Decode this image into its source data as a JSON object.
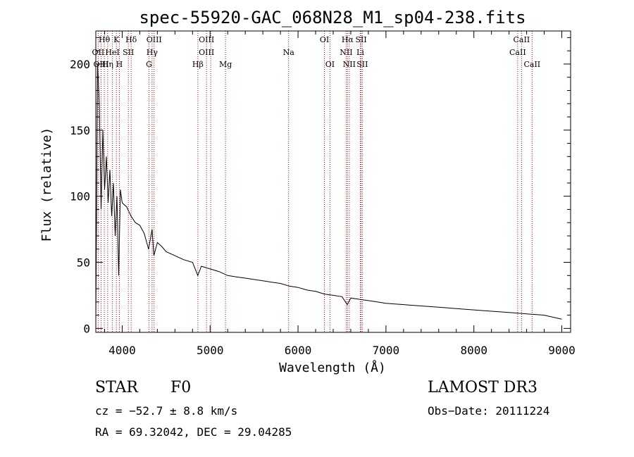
{
  "chart_data": {
    "type": "line",
    "title": "spec-55920-GAC_068N28_M1_sp04-238.fits",
    "xlabel": "Wavelength (Å)",
    "ylabel": "Flux (relative)",
    "xlim": [
      3700,
      9100
    ],
    "ylim": [
      -3,
      225
    ],
    "xticks": [
      4000,
      5000,
      6000,
      7000,
      8000,
      9000
    ],
    "yticks": [
      0,
      50,
      100,
      150,
      200
    ],
    "grid": false,
    "series": [
      {
        "name": "flux",
        "x": [
          3700,
          3720,
          3740,
          3760,
          3780,
          3800,
          3820,
          3840,
          3860,
          3880,
          3900,
          3920,
          3940,
          3960,
          3980,
          4000,
          4050,
          4100,
          4150,
          4200,
          4250,
          4300,
          4340,
          4360,
          4400,
          4450,
          4500,
          4600,
          4700,
          4800,
          4860,
          4900,
          5000,
          5100,
          5200,
          5300,
          5400,
          5500,
          5600,
          5700,
          5800,
          5900,
          6000,
          6100,
          6200,
          6300,
          6400,
          6500,
          6560,
          6600,
          6700,
          6800,
          6900,
          7000,
          7200,
          7400,
          7600,
          7800,
          8000,
          8200,
          8400,
          8600,
          8800,
          9000
        ],
        "y": [
          5,
          200,
          170,
          90,
          150,
          105,
          130,
          95,
          120,
          85,
          110,
          70,
          100,
          40,
          105,
          95,
          92,
          85,
          80,
          78,
          72,
          60,
          75,
          55,
          65,
          62,
          58,
          55,
          52,
          50,
          40,
          47,
          45,
          43,
          40,
          39,
          38,
          37,
          36,
          35,
          34,
          32,
          31,
          29,
          28,
          26,
          25,
          24,
          18,
          23,
          22,
          21,
          20,
          19,
          18,
          17,
          16,
          15,
          14,
          13,
          12,
          11,
          10,
          7
        ]
      }
    ],
    "line_labels": [
      {
        "text": "Hθ",
        "x": 3797,
        "row": 1
      },
      {
        "text": "K",
        "x": 3934,
        "row": 1
      },
      {
        "text": "Hδ",
        "x": 4102,
        "row": 1
      },
      {
        "text": "OIII",
        "x": 4363,
        "row": 1
      },
      {
        "text": "OIII",
        "x": 4959,
        "row": 1
      },
      {
        "text": "OI",
        "x": 6300,
        "row": 1
      },
      {
        "text": "Hα",
        "x": 6563,
        "row": 1
      },
      {
        "text": "SII",
        "x": 6717,
        "row": 1
      },
      {
        "text": "CaII",
        "x": 8542,
        "row": 1
      },
      {
        "text": "OII",
        "x": 3727,
        "row": 2
      },
      {
        "text": "HeI",
        "x": 3889,
        "row": 2
      },
      {
        "text": "SII",
        "x": 4070,
        "row": 2
      },
      {
        "text": "Hγ",
        "x": 4340,
        "row": 2
      },
      {
        "text": "OIII",
        "x": 4959,
        "row": 2
      },
      {
        "text": "Na",
        "x": 5893,
        "row": 2
      },
      {
        "text": "NII",
        "x": 6548,
        "row": 2
      },
      {
        "text": "Li",
        "x": 6708,
        "row": 2
      },
      {
        "text": "CaII",
        "x": 8498,
        "row": 2
      },
      {
        "text": "OIII",
        "x": 3760,
        "row": 3
      },
      {
        "text": "Hη",
        "x": 3835,
        "row": 3
      },
      {
        "text": "H",
        "x": 3968,
        "row": 3
      },
      {
        "text": "G",
        "x": 4305,
        "row": 3
      },
      {
        "text": "Hβ",
        "x": 4861,
        "row": 3
      },
      {
        "text": "Mg",
        "x": 5175,
        "row": 3
      },
      {
        "text": "OI",
        "x": 6363,
        "row": 3
      },
      {
        "text": "NII",
        "x": 6583,
        "row": 3
      },
      {
        "text": "SII",
        "x": 6731,
        "row": 3
      },
      {
        "text": "CaII",
        "x": 8662,
        "row": 3
      }
    ],
    "line_markers": [
      3727,
      3760,
      3797,
      3835,
      3889,
      3934,
      3968,
      4070,
      4102,
      4305,
      4340,
      4363,
      4861,
      4959,
      5007,
      5175,
      5893,
      6300,
      6363,
      6548,
      6563,
      6583,
      6708,
      6717,
      6731,
      8498,
      8542,
      8662
    ]
  },
  "info": {
    "class": "STAR",
    "subclass": "F0",
    "survey": "LAMOST DR3",
    "cz": "cz = −52.7 ± 8.8 km/s",
    "obs_date": "Obs−Date: 20111224",
    "coords": "RA =  69.32042, DEC =  29.04285"
  }
}
